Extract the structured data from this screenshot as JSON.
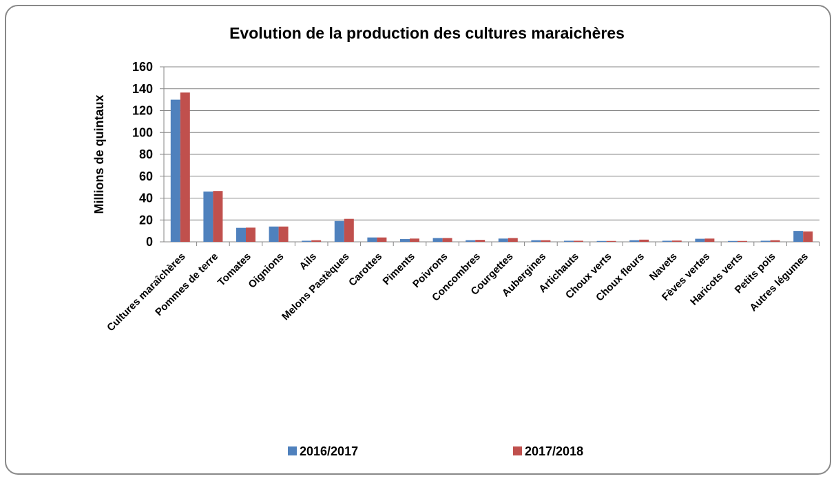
{
  "chart_data": {
    "type": "bar",
    "title": "Evolution de la production des cultures maraichères",
    "y_label": "Millions de quintaux",
    "categories": [
      "Cultures maraîchères",
      "Pommes de terre",
      "Tomates",
      "Oignions",
      "Ails",
      "Melons Pastèques",
      "Carottes",
      "Piments",
      "Poivrons",
      "Concombres",
      "Courgettes",
      "Aubergines",
      "Artichauts",
      "Choux verts",
      "Choux fleurs",
      "Navets",
      "Fèves vertes",
      "Haricots verts",
      "Petits pois",
      "Autres légumes"
    ],
    "series": [
      {
        "name": "2016/2017",
        "color": "#4f81bd",
        "values": [
          130,
          46,
          12.8,
          14,
          1,
          19,
          4,
          2.5,
          3.5,
          1.5,
          3,
          1.5,
          1,
          0.8,
          1.5,
          1,
          2.8,
          0.8,
          1,
          10
        ]
      },
      {
        "name": "2017/2018",
        "color": "#c0504d",
        "values": [
          136.5,
          46.5,
          13,
          14,
          1.5,
          21,
          4,
          3,
          3.5,
          1.8,
          3.5,
          1.5,
          1,
          0.8,
          2,
          1.2,
          3,
          0.8,
          1.5,
          9.5
        ]
      }
    ],
    "ylim": [
      0,
      160
    ],
    "yticks": [
      0,
      20,
      40,
      60,
      80,
      100,
      120,
      140,
      160
    ],
    "grid": true,
    "legend": "bottom"
  }
}
